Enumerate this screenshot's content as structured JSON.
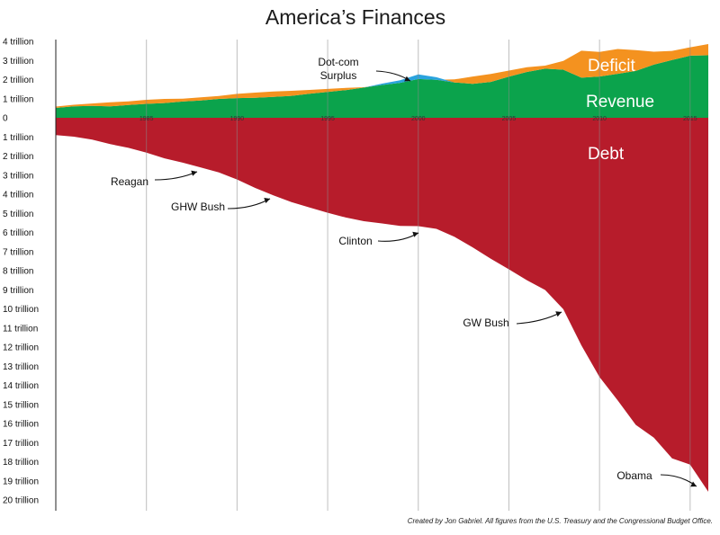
{
  "chart_data": {
    "type": "area",
    "title": "America’s Finances",
    "x": [
      1980,
      1981,
      1982,
      1983,
      1984,
      1985,
      1986,
      1987,
      1988,
      1989,
      1990,
      1991,
      1992,
      1993,
      1994,
      1995,
      1996,
      1997,
      1998,
      1999,
      2000,
      2001,
      2002,
      2003,
      2004,
      2005,
      2006,
      2007,
      2008,
      2009,
      2010,
      2011,
      2012,
      2013,
      2014,
      2015,
      2016
    ],
    "xlim": [
      1980,
      2016.3
    ],
    "x_tick_labels": [
      "1985",
      "1990",
      "1995",
      "2000",
      "2005",
      "2010",
      "2015"
    ],
    "x_tick_values": [
      1985,
      1990,
      1995,
      2000,
      2005,
      2010,
      2015
    ],
    "y_positive_labels": [
      "4 trillion",
      "3 trillion",
      "2 trillion",
      "1 trillion",
      "0"
    ],
    "y_negative_labels": [
      "1 trillion",
      "2 trillion",
      "3 trillion",
      "4 trillion",
      "5 trillion",
      "6 trillion",
      "7 trillion",
      "8 trillion",
      "9 trillion",
      "10 trillion",
      "11 trillion",
      "12 trillion",
      "13 trillion",
      "14 trillion",
      "15 trillion",
      "16 trillion",
      "17 trillion",
      "18 trillion",
      "19 trillion",
      "20 trillion"
    ],
    "ylim": [
      -20,
      4
    ],
    "series": [
      {
        "name": "Revenue",
        "color": "#0ba34c",
        "values": [
          0.52,
          0.6,
          0.62,
          0.6,
          0.67,
          0.73,
          0.77,
          0.85,
          0.91,
          0.99,
          1.03,
          1.05,
          1.09,
          1.15,
          1.26,
          1.35,
          1.45,
          1.58,
          1.72,
          1.83,
          2.03,
          1.99,
          1.85,
          1.78,
          1.88,
          2.15,
          2.4,
          2.57,
          2.52,
          2.1,
          2.16,
          2.3,
          2.45,
          2.78,
          3.02,
          3.25,
          3.27
        ]
      },
      {
        "name": "Deficit",
        "color": "#f4921f",
        "values": [
          0.07,
          0.08,
          0.13,
          0.21,
          0.19,
          0.21,
          0.22,
          0.15,
          0.16,
          0.15,
          0.22,
          0.27,
          0.29,
          0.26,
          0.2,
          0.16,
          0.11,
          0.02,
          0.0,
          0.0,
          0.0,
          0.0,
          0.16,
          0.38,
          0.41,
          0.32,
          0.25,
          0.16,
          0.46,
          1.41,
          1.29,
          1.3,
          1.09,
          0.68,
          0.48,
          0.44,
          0.59
        ]
      },
      {
        "name": "Surplus",
        "color": "#2aa3de",
        "values": [
          0,
          0,
          0,
          0,
          0,
          0,
          0,
          0,
          0,
          0,
          0,
          0,
          0,
          0,
          0,
          0,
          0,
          0,
          0.07,
          0.13,
          0.24,
          0.13,
          0,
          0,
          0,
          0,
          0,
          0,
          0,
          0,
          0,
          0,
          0,
          0,
          0,
          0,
          0
        ]
      },
      {
        "name": "Debt",
        "color": "#b71c2b",
        "values": [
          -0.91,
          -0.99,
          -1.14,
          -1.38,
          -1.57,
          -1.82,
          -2.12,
          -2.35,
          -2.6,
          -2.86,
          -3.23,
          -3.67,
          -4.06,
          -4.41,
          -4.69,
          -4.97,
          -5.22,
          -5.41,
          -5.53,
          -5.66,
          -5.67,
          -5.81,
          -6.23,
          -6.78,
          -7.38,
          -7.93,
          -8.51,
          -9.01,
          -10.02,
          -11.91,
          -13.56,
          -14.79,
          -16.07,
          -16.74,
          -17.82,
          -18.15,
          -19.57
        ]
      }
    ],
    "labels": {
      "deficit": "Deficit",
      "revenue": "Revenue",
      "debt": "Debt",
      "dotcom_line1": "Dot-com",
      "dotcom_line2": "Surplus",
      "reagan": "Reagan",
      "ghw_bush": "GHW Bush",
      "clinton": "Clinton",
      "gw_bush": "GW Bush",
      "obama": "Obama"
    },
    "credit": "Created by Jon Gabriel. All figures from the U.S. Treasury and the Congressional Budget Office.",
    "grid": true
  }
}
